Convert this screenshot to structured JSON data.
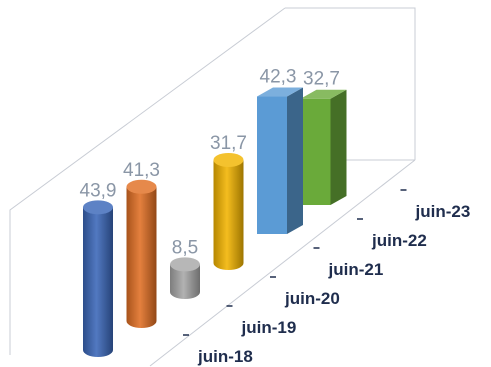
{
  "chart_data": {
    "type": "bar",
    "style": "3d-cylinder",
    "categories": [
      "juin-18",
      "juin-19",
      "juin-20",
      "juin-21",
      "juin-22",
      "juin-23"
    ],
    "values": [
      43.9,
      41.3,
      8.5,
      31.7,
      42.3,
      32.7
    ],
    "value_labels": [
      "43,9",
      "41,3",
      "8,5",
      "31,7",
      "42,3",
      "32,7"
    ],
    "colors": [
      "#3a67b8",
      "#e06f24",
      "#a7a7a7",
      "#f2b400",
      "#5b9bd5",
      "#6aaa3a"
    ],
    "title": "",
    "xlabel": "",
    "ylabel": "",
    "grid": false,
    "legend": "none"
  }
}
